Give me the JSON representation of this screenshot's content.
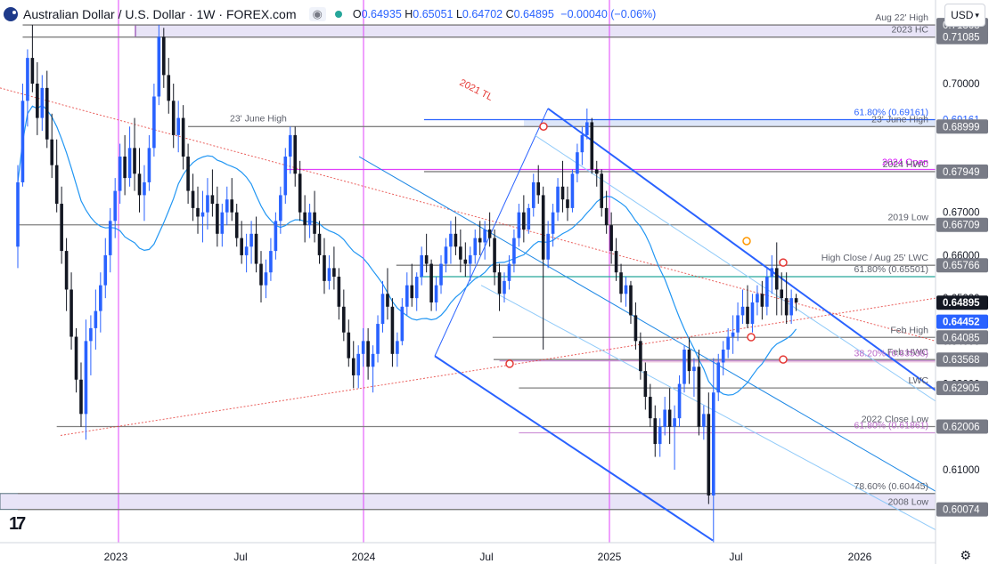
{
  "header": {
    "title": "Australian Dollar / U.S. Dollar · 1W · FOREX.com",
    "eye_icon": "eye-icon",
    "ohlc": [
      {
        "k": "O",
        "v": "0.64935"
      },
      {
        "k": "H",
        "v": "0.65051"
      },
      {
        "k": "L",
        "v": "0.64702"
      },
      {
        "k": "C",
        "v": "0.64895"
      }
    ],
    "change": "−0.00040 (−0.06%)",
    "currency": "USD"
  },
  "colors": {
    "up": "#2962ff",
    "down": "#131722",
    "ma": "#2196f3",
    "tl": "#e53935",
    "magenta": "#e040fb",
    "gray": "#808080",
    "channel": "#2962ff",
    "green": "#26a69a"
  },
  "chart_data": {
    "type": "candlestick",
    "ylim": [
      0.593,
      0.7195
    ],
    "x_ticks": [
      "2023",
      "Jul",
      "2024",
      "Jul",
      "2025",
      "Jul",
      "2026"
    ],
    "y_ticks": [
      "0.70000",
      "0.69000",
      "0.68000",
      "0.67000",
      "0.66000",
      "0.65000",
      "0.64000",
      "0.63000",
      "0.62000",
      "0.61000"
    ],
    "price_tags": [
      {
        "label": "0.71368",
        "value": 0.71368,
        "style": "gray"
      },
      {
        "label": "0.71085",
        "value": 0.71085,
        "style": "gray"
      },
      {
        "label": "0.69161",
        "value": 0.69161,
        "style": "blue-text"
      },
      {
        "label": "0.68999",
        "value": 0.68999,
        "style": "gray"
      },
      {
        "label": "0.67949",
        "value": 0.67949,
        "style": "gray"
      },
      {
        "label": "0.66709",
        "value": 0.66709,
        "style": "gray"
      },
      {
        "label": "0.65766",
        "value": 0.65766,
        "style": "gray"
      },
      {
        "label": "0.64895",
        "value": 0.64895,
        "style": "dark"
      },
      {
        "label": "0.64452",
        "value": 0.64452,
        "style": "blue"
      },
      {
        "label": "0.64085",
        "value": 0.64085,
        "style": "gray"
      },
      {
        "label": "0.63568",
        "value": 0.63568,
        "style": "gray"
      },
      {
        "label": "0.62905",
        "value": 0.62905,
        "style": "gray"
      },
      {
        "label": "0.62006",
        "value": 0.62006,
        "style": "gray"
      },
      {
        "label": "0.60074",
        "value": 0.60074,
        "style": "gray"
      }
    ],
    "levels": [
      {
        "label": "Aug 22' High",
        "value": 0.71368,
        "color": "gray",
        "x0": 1.0
      },
      {
        "label": "2023 HC",
        "value": 0.71085,
        "color": "gray",
        "x0": 1.0
      },
      {
        "label": "61.80% (0.69161)",
        "value": 0.69161,
        "color": "blue",
        "x0": 83.5
      },
      {
        "label": "23' June High",
        "value": 0.68999,
        "color": "gray",
        "x0": 35.0
      },
      {
        "label": "2024 Open",
        "value": 0.68,
        "color": "magenta",
        "x0": 54.8
      },
      {
        "label": "2024 HWC",
        "value": 0.67949,
        "color": "gray",
        "x0": 83.5
      },
      {
        "label": "2019 Low",
        "value": 0.66709,
        "color": "gray",
        "x0": 0.0
      },
      {
        "label": "High Close / Aug 25' LWC",
        "value": 0.65766,
        "color": "gray",
        "x0": 77.8
      },
      {
        "label": "61.80% (0.65501)",
        "value": 0.65501,
        "color": "green",
        "x0": 82.6
      },
      {
        "label": "Feb High",
        "value": 0.64085,
        "color": "gray",
        "x0": 97.6
      },
      {
        "label": "Feb HWC",
        "value": 0.63568,
        "color": "gray",
        "x0": 97.8
      },
      {
        "label": "38.20% (0.63538)",
        "value": 0.63538,
        "color": "pink",
        "x0": 99.0
      },
      {
        "label": "LWC",
        "value": 0.62905,
        "color": "gray",
        "x0": 103.0
      },
      {
        "label": "2022 Close Low",
        "value": 0.62006,
        "color": "gray",
        "x0": 8.0
      },
      {
        "label": "61.80% (0.61861)",
        "value": 0.61861,
        "color": "pink",
        "x0": 103.0
      },
      {
        "label": "78.60% (0.60445)",
        "value": 0.60445,
        "color": "gray",
        "x0": 0.0
      },
      {
        "label": "2008 Low",
        "value": 0.60074,
        "color": "gray",
        "x0": 0.0
      }
    ],
    "tl_label": "2021 TL",
    "candles": [
      [
        0.662,
        0.681,
        0.657,
        0.677
      ],
      [
        0.677,
        0.7,
        0.676,
        0.696
      ],
      [
        0.696,
        0.708,
        0.69,
        0.706
      ],
      [
        0.706,
        0.7137,
        0.698,
        0.7
      ],
      [
        0.7,
        0.705,
        0.688,
        0.692
      ],
      [
        0.692,
        0.702,
        0.689,
        0.699
      ],
      [
        0.699,
        0.703,
        0.685,
        0.687
      ],
      [
        0.687,
        0.693,
        0.678,
        0.681
      ],
      [
        0.681,
        0.687,
        0.67,
        0.672
      ],
      [
        0.672,
        0.676,
        0.658,
        0.661
      ],
      [
        0.661,
        0.664,
        0.647,
        0.652
      ],
      [
        0.652,
        0.656,
        0.638,
        0.641
      ],
      [
        0.641,
        0.643,
        0.628,
        0.631
      ],
      [
        0.631,
        0.635,
        0.62,
        0.623
      ],
      [
        0.623,
        0.645,
        0.617,
        0.64
      ],
      [
        0.64,
        0.646,
        0.632,
        0.643
      ],
      [
        0.643,
        0.652,
        0.638,
        0.647
      ],
      [
        0.647,
        0.656,
        0.642,
        0.653
      ],
      [
        0.653,
        0.664,
        0.65,
        0.66
      ],
      [
        0.66,
        0.671,
        0.656,
        0.668
      ],
      [
        0.668,
        0.678,
        0.664,
        0.675
      ],
      [
        0.675,
        0.686,
        0.672,
        0.683
      ],
      [
        0.683,
        0.688,
        0.674,
        0.678
      ],
      [
        0.678,
        0.69,
        0.676,
        0.685
      ],
      [
        0.685,
        0.692,
        0.675,
        0.679
      ],
      [
        0.679,
        0.685,
        0.67,
        0.674
      ],
      [
        0.674,
        0.681,
        0.668,
        0.677
      ],
      [
        0.677,
        0.688,
        0.675,
        0.685
      ],
      [
        0.685,
        0.7,
        0.683,
        0.697
      ],
      [
        0.697,
        0.7137,
        0.695,
        0.7109
      ],
      [
        0.7109,
        0.713,
        0.699,
        0.702
      ],
      [
        0.702,
        0.706,
        0.693,
        0.696
      ],
      [
        0.696,
        0.7,
        0.685,
        0.688
      ],
      [
        0.688,
        0.696,
        0.684,
        0.692
      ],
      [
        0.692,
        0.695,
        0.68,
        0.683
      ],
      [
        0.683,
        0.686,
        0.672,
        0.675
      ],
      [
        0.675,
        0.679,
        0.668,
        0.671
      ],
      [
        0.671,
        0.676,
        0.665,
        0.669
      ],
      [
        0.669,
        0.675,
        0.663,
        0.67
      ],
      [
        0.67,
        0.678,
        0.666,
        0.674
      ],
      [
        0.674,
        0.68,
        0.669,
        0.672
      ],
      [
        0.672,
        0.676,
        0.662,
        0.665
      ],
      [
        0.665,
        0.672,
        0.662,
        0.67
      ],
      [
        0.67,
        0.676,
        0.667,
        0.673
      ],
      [
        0.673,
        0.678,
        0.668,
        0.67
      ],
      [
        0.67,
        0.672,
        0.662,
        0.664
      ],
      [
        0.664,
        0.668,
        0.658,
        0.66
      ],
      [
        0.66,
        0.665,
        0.656,
        0.662
      ],
      [
        0.662,
        0.668,
        0.658,
        0.665
      ],
      [
        0.665,
        0.669,
        0.656,
        0.658
      ],
      [
        0.658,
        0.661,
        0.649,
        0.653
      ],
      [
        0.653,
        0.659,
        0.65,
        0.656
      ],
      [
        0.656,
        0.664,
        0.654,
        0.661
      ],
      [
        0.661,
        0.67,
        0.659,
        0.668
      ],
      [
        0.668,
        0.676,
        0.665,
        0.674
      ],
      [
        0.674,
        0.685,
        0.672,
        0.683
      ],
      [
        0.683,
        0.69,
        0.679,
        0.688
      ],
      [
        0.688,
        0.69,
        0.676,
        0.679
      ],
      [
        0.679,
        0.682,
        0.668,
        0.67
      ],
      [
        0.67,
        0.674,
        0.663,
        0.667
      ],
      [
        0.667,
        0.672,
        0.664,
        0.67
      ],
      [
        0.67,
        0.675,
        0.663,
        0.665
      ],
      [
        0.665,
        0.668,
        0.658,
        0.66
      ],
      [
        0.66,
        0.664,
        0.651,
        0.654
      ],
      [
        0.654,
        0.66,
        0.652,
        0.657
      ],
      [
        0.657,
        0.662,
        0.652,
        0.655
      ],
      [
        0.655,
        0.657,
        0.645,
        0.648
      ],
      [
        0.648,
        0.652,
        0.64,
        0.642
      ],
      [
        0.642,
        0.645,
        0.634,
        0.636
      ],
      [
        0.636,
        0.64,
        0.629,
        0.632
      ],
      [
        0.632,
        0.639,
        0.629,
        0.637
      ],
      [
        0.637,
        0.643,
        0.634,
        0.64
      ],
      [
        0.64,
        0.643,
        0.631,
        0.634
      ],
      [
        0.634,
        0.639,
        0.628,
        0.637
      ],
      [
        0.637,
        0.646,
        0.635,
        0.644
      ],
      [
        0.644,
        0.654,
        0.642,
        0.651
      ],
      [
        0.651,
        0.657,
        0.645,
        0.648
      ],
      [
        0.648,
        0.65,
        0.634,
        0.637
      ],
      [
        0.637,
        0.642,
        0.634,
        0.64
      ],
      [
        0.64,
        0.65,
        0.639,
        0.648
      ],
      [
        0.648,
        0.656,
        0.646,
        0.653
      ],
      [
        0.653,
        0.658,
        0.648,
        0.65
      ],
      [
        0.65,
        0.656,
        0.647,
        0.655
      ],
      [
        0.655,
        0.662,
        0.653,
        0.66
      ],
      [
        0.66,
        0.665,
        0.656,
        0.658
      ],
      [
        0.658,
        0.659,
        0.647,
        0.649
      ],
      [
        0.649,
        0.655,
        0.647,
        0.653
      ],
      [
        0.653,
        0.66,
        0.651,
        0.658
      ],
      [
        0.658,
        0.664,
        0.656,
        0.662
      ],
      [
        0.662,
        0.668,
        0.658,
        0.665
      ],
      [
        0.665,
        0.669,
        0.66,
        0.662
      ],
      [
        0.662,
        0.666,
        0.656,
        0.659
      ],
      [
        0.659,
        0.663,
        0.655,
        0.658
      ],
      [
        0.658,
        0.662,
        0.654,
        0.66
      ],
      [
        0.66,
        0.666,
        0.658,
        0.664
      ],
      [
        0.664,
        0.668,
        0.66,
        0.663
      ],
      [
        0.663,
        0.668,
        0.659,
        0.666
      ],
      [
        0.666,
        0.67,
        0.662,
        0.664
      ],
      [
        0.664,
        0.666,
        0.653,
        0.656
      ],
      [
        0.656,
        0.658,
        0.647,
        0.651
      ],
      [
        0.651,
        0.656,
        0.649,
        0.654
      ],
      [
        0.654,
        0.66,
        0.652,
        0.658
      ],
      [
        0.658,
        0.666,
        0.656,
        0.664
      ],
      [
        0.664,
        0.672,
        0.662,
        0.67
      ],
      [
        0.67,
        0.674,
        0.663,
        0.666
      ],
      [
        0.666,
        0.672,
        0.665,
        0.671
      ],
      [
        0.671,
        0.679,
        0.669,
        0.677
      ],
      [
        0.677,
        0.681,
        0.672,
        0.674
      ],
      [
        0.674,
        0.676,
        0.638,
        0.659
      ],
      [
        0.659,
        0.668,
        0.657,
        0.665
      ],
      [
        0.665,
        0.672,
        0.662,
        0.67
      ],
      [
        0.67,
        0.678,
        0.668,
        0.676
      ],
      [
        0.676,
        0.682,
        0.67,
        0.673
      ],
      [
        0.673,
        0.676,
        0.668,
        0.671
      ],
      [
        0.671,
        0.68,
        0.67,
        0.679
      ],
      [
        0.679,
        0.686,
        0.677,
        0.684
      ],
      [
        0.684,
        0.69,
        0.681,
        0.688
      ],
      [
        0.688,
        0.6942,
        0.687,
        0.691
      ],
      [
        0.691,
        0.692,
        0.679,
        0.68
      ],
      [
        0.68,
        0.682,
        0.676,
        0.679
      ],
      [
        0.679,
        0.68,
        0.669,
        0.671
      ],
      [
        0.671,
        0.675,
        0.665,
        0.667
      ],
      [
        0.667,
        0.67,
        0.658,
        0.661
      ],
      [
        0.661,
        0.664,
        0.654,
        0.656
      ],
      [
        0.656,
        0.658,
        0.649,
        0.651
      ],
      [
        0.651,
        0.655,
        0.648,
        0.653
      ],
      [
        0.653,
        0.654,
        0.644,
        0.646
      ],
      [
        0.646,
        0.649,
        0.638,
        0.64
      ],
      [
        0.64,
        0.642,
        0.631,
        0.633
      ],
      [
        0.633,
        0.635,
        0.624,
        0.627
      ],
      [
        0.627,
        0.63,
        0.62,
        0.622
      ],
      [
        0.622,
        0.625,
        0.613,
        0.616
      ],
      [
        0.616,
        0.622,
        0.613,
        0.62
      ],
      [
        0.62,
        0.627,
        0.618,
        0.624
      ],
      [
        0.624,
        0.629,
        0.616,
        0.62
      ],
      [
        0.62,
        0.625,
        0.61,
        0.622
      ],
      [
        0.622,
        0.632,
        0.62,
        0.63
      ],
      [
        0.63,
        0.639,
        0.628,
        0.638
      ],
      [
        0.638,
        0.6408,
        0.63,
        0.633
      ],
      [
        0.633,
        0.636,
        0.627,
        0.634
      ],
      [
        0.634,
        0.638,
        0.618,
        0.62
      ],
      [
        0.62,
        0.625,
        0.617,
        0.623
      ],
      [
        0.623,
        0.628,
        0.602,
        0.604
      ],
      [
        0.604,
        0.636,
        0.593,
        0.628
      ],
      [
        0.628,
        0.637,
        0.626,
        0.635
      ],
      [
        0.635,
        0.64,
        0.632,
        0.638
      ],
      [
        0.638,
        0.643,
        0.636,
        0.641
      ],
      [
        0.641,
        0.646,
        0.637,
        0.642
      ],
      [
        0.642,
        0.649,
        0.64,
        0.646
      ],
      [
        0.646,
        0.652,
        0.644,
        0.648
      ],
      [
        0.648,
        0.653,
        0.643,
        0.644
      ],
      [
        0.644,
        0.651,
        0.642,
        0.649
      ],
      [
        0.649,
        0.653,
        0.646,
        0.651
      ],
      [
        0.651,
        0.654,
        0.645,
        0.648
      ],
      [
        0.648,
        0.657,
        0.646,
        0.655
      ],
      [
        0.655,
        0.66,
        0.651,
        0.657
      ],
      [
        0.657,
        0.663,
        0.646,
        0.652
      ],
      [
        0.652,
        0.656,
        0.646,
        0.65
      ],
      [
        0.65,
        0.656,
        0.644,
        0.646
      ],
      [
        0.646,
        0.652,
        0.644,
        0.65
      ],
      [
        0.65,
        0.651,
        0.647,
        0.649
      ]
    ]
  }
}
